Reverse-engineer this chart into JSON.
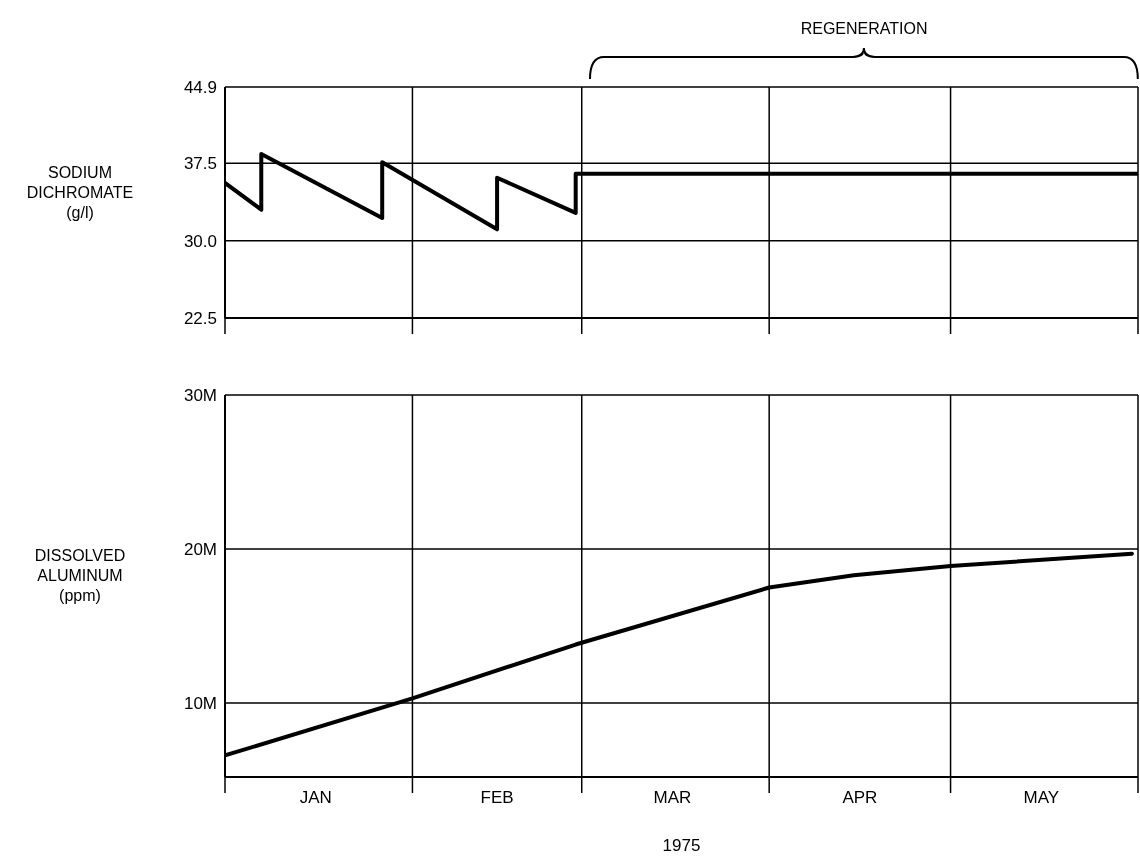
{
  "chart_data": [
    {
      "type": "line",
      "ylabel": "SODIUM DICHROMATE (g/l)",
      "annotations": [
        "REGENERATION"
      ],
      "x": [
        "1975-01-01",
        "1975-01-07",
        "1975-01-07",
        "1975-01-27",
        "1975-01-27",
        "1975-02-15",
        "1975-02-15",
        "1975-02-28",
        "1975-02-28",
        "1975-06-01"
      ],
      "series": [
        {
          "color": "#000000",
          "values": [
            35.6,
            33.0,
            38.4,
            32.2,
            37.6,
            31.1,
            36.1,
            32.7,
            36.5,
            36.5
          ]
        }
      ],
      "xlim": [
        "1975-01-01",
        "1975-06-01"
      ],
      "xticks": [
        {
          "value": "1975-01-01",
          "label": null
        },
        {
          "value": "1975-02-01",
          "label": null
        },
        {
          "value": "1975-03-01",
          "label": null
        },
        {
          "value": "1975-04-01",
          "label": null
        },
        {
          "value": "1975-05-01",
          "label": null
        },
        {
          "value": "1975-06-01",
          "label": null
        }
      ],
      "ylim": [
        22.5,
        44.9
      ],
      "yticks": [
        22.5,
        {
          "value": 30,
          "label": "30.0"
        },
        37.5,
        44.9
      ],
      "tick_labels": "y",
      "grid": true,
      "marker": "none",
      "line_style": "solid"
    },
    {
      "type": "line",
      "ylabel": "DISSOLVED ALUMINUM (ppm)",
      "xlabel": "1975",
      "x": [
        "1975-01-01",
        "1975-02-01",
        "1975-02-28",
        "1975-04-01",
        "1975-04-15",
        "1975-05-01",
        "1975-05-31"
      ],
      "series": [
        {
          "color": "#000000",
          "values": [
            6.6,
            10.3,
            13.8,
            17.5,
            18.3,
            18.9,
            19.7
          ]
        }
      ],
      "xlim": [
        "1975-01-01",
        "1975-06-01"
      ],
      "xticks": [
        {
          "value": "1975-01-01",
          "label": null
        },
        {
          "value": "1975-01-16",
          "label": "JAN"
        },
        {
          "value": "1975-02-01",
          "label": null
        },
        {
          "value": "1975-02-15",
          "label": "FEB"
        },
        {
          "value": "1975-03-01",
          "label": null
        },
        {
          "value": "1975-03-16",
          "label": "MAR"
        },
        {
          "value": "1975-04-01",
          "label": null
        },
        {
          "value": "1975-04-16",
          "label": "APR"
        },
        {
          "value": "1975-05-01",
          "label": null
        },
        {
          "value": "1975-05-16",
          "label": "MAY"
        },
        {
          "value": "1975-06-01",
          "label": null
        }
      ],
      "ylim": [
        5.2,
        30
      ],
      "yticks": [
        {
          "value": 10,
          "label": "10M"
        },
        {
          "value": 20,
          "label": "20M"
        },
        {
          "value": 30,
          "label": "30M"
        }
      ],
      "grid": true,
      "marker": "none",
      "line_style": "solid"
    }
  ]
}
